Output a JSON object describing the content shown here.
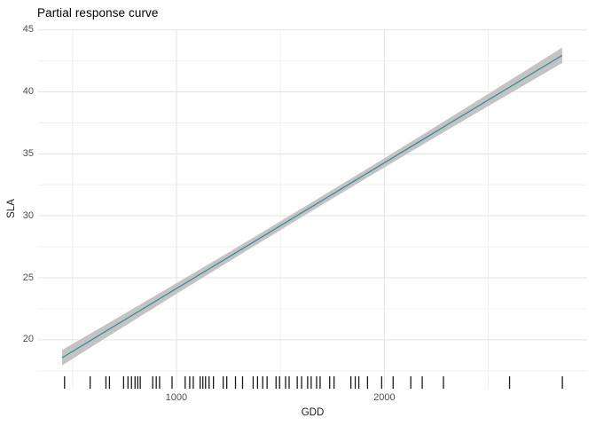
{
  "chart_data": {
    "type": "line",
    "title": "Partial response curve",
    "xlabel": "GDD",
    "ylabel": "SLA",
    "x_ticks": [
      1000,
      2000
    ],
    "x_minor_ticks": [
      500,
      1500,
      2500
    ],
    "y_ticks": [
      20,
      25,
      30,
      35,
      40,
      45
    ],
    "y_minor_ticks": [
      17.5,
      22.5,
      27.5,
      32.5,
      37.5,
      42.5
    ],
    "xlim": [
      335,
      2975
    ],
    "ylim": [
      16.05,
      45.05
    ],
    "grid": "on",
    "legend": "none",
    "series": [
      {
        "name": "partial-response-line",
        "x": [
          450,
          700,
          1000,
          1300,
          1600,
          1900,
          2200,
          2500,
          2855
        ],
        "y": [
          18.55,
          21.09,
          24.13,
          27.17,
          30.22,
          33.26,
          36.31,
          39.35,
          42.95
        ],
        "band_upper": [
          19.17,
          21.61,
          24.56,
          27.54,
          30.57,
          33.62,
          36.72,
          39.84,
          43.57
        ],
        "band_lower": [
          17.93,
          20.57,
          23.7,
          26.8,
          29.87,
          32.9,
          35.9,
          38.86,
          42.33
        ]
      }
    ],
    "rug_x": [
      462,
      585,
      661,
      678,
      746,
      767,
      784,
      801,
      814,
      826,
      886,
      903,
      919,
      979,
      1042,
      1064,
      1081,
      1114,
      1127,
      1140,
      1157,
      1178,
      1225,
      1242,
      1284,
      1318,
      1369,
      1390,
      1415,
      1436,
      1479,
      1496,
      1525,
      1542,
      1581,
      1602,
      1631,
      1648,
      1674,
      1691,
      1737,
      1758,
      1839,
      1860,
      1877,
      1919,
      1987,
      2042,
      2127,
      2182,
      2284,
      2602,
      2856
    ],
    "colors": {
      "line": "#2d8b8d",
      "band": "#c3c3c3",
      "grid_major": "#e3e3e3",
      "grid_minor": "#f0f0f0",
      "tick_text": "#4d4d4d",
      "title_text": "#000000",
      "rug": "#1a1a1a"
    }
  }
}
